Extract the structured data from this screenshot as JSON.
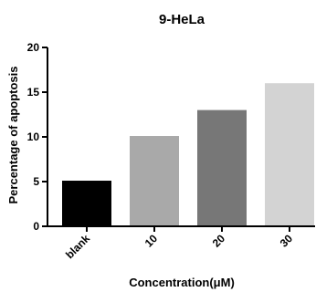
{
  "chart_data": {
    "type": "bar",
    "title": "9-HeLa",
    "xlabel": "Concentration(μM)",
    "ylabel": "Percentage of apoptosis",
    "categories": [
      "blank",
      "10",
      "20",
      "30"
    ],
    "values": [
      5.1,
      10.1,
      13.0,
      16.0
    ],
    "colors": [
      "#000000",
      "#a9a9a9",
      "#777777",
      "#d3d3d3"
    ],
    "ylim": [
      0,
      20
    ],
    "yticks": [
      "0",
      "5",
      "10",
      "15",
      "20"
    ],
    "grid": false,
    "legend": "none"
  }
}
